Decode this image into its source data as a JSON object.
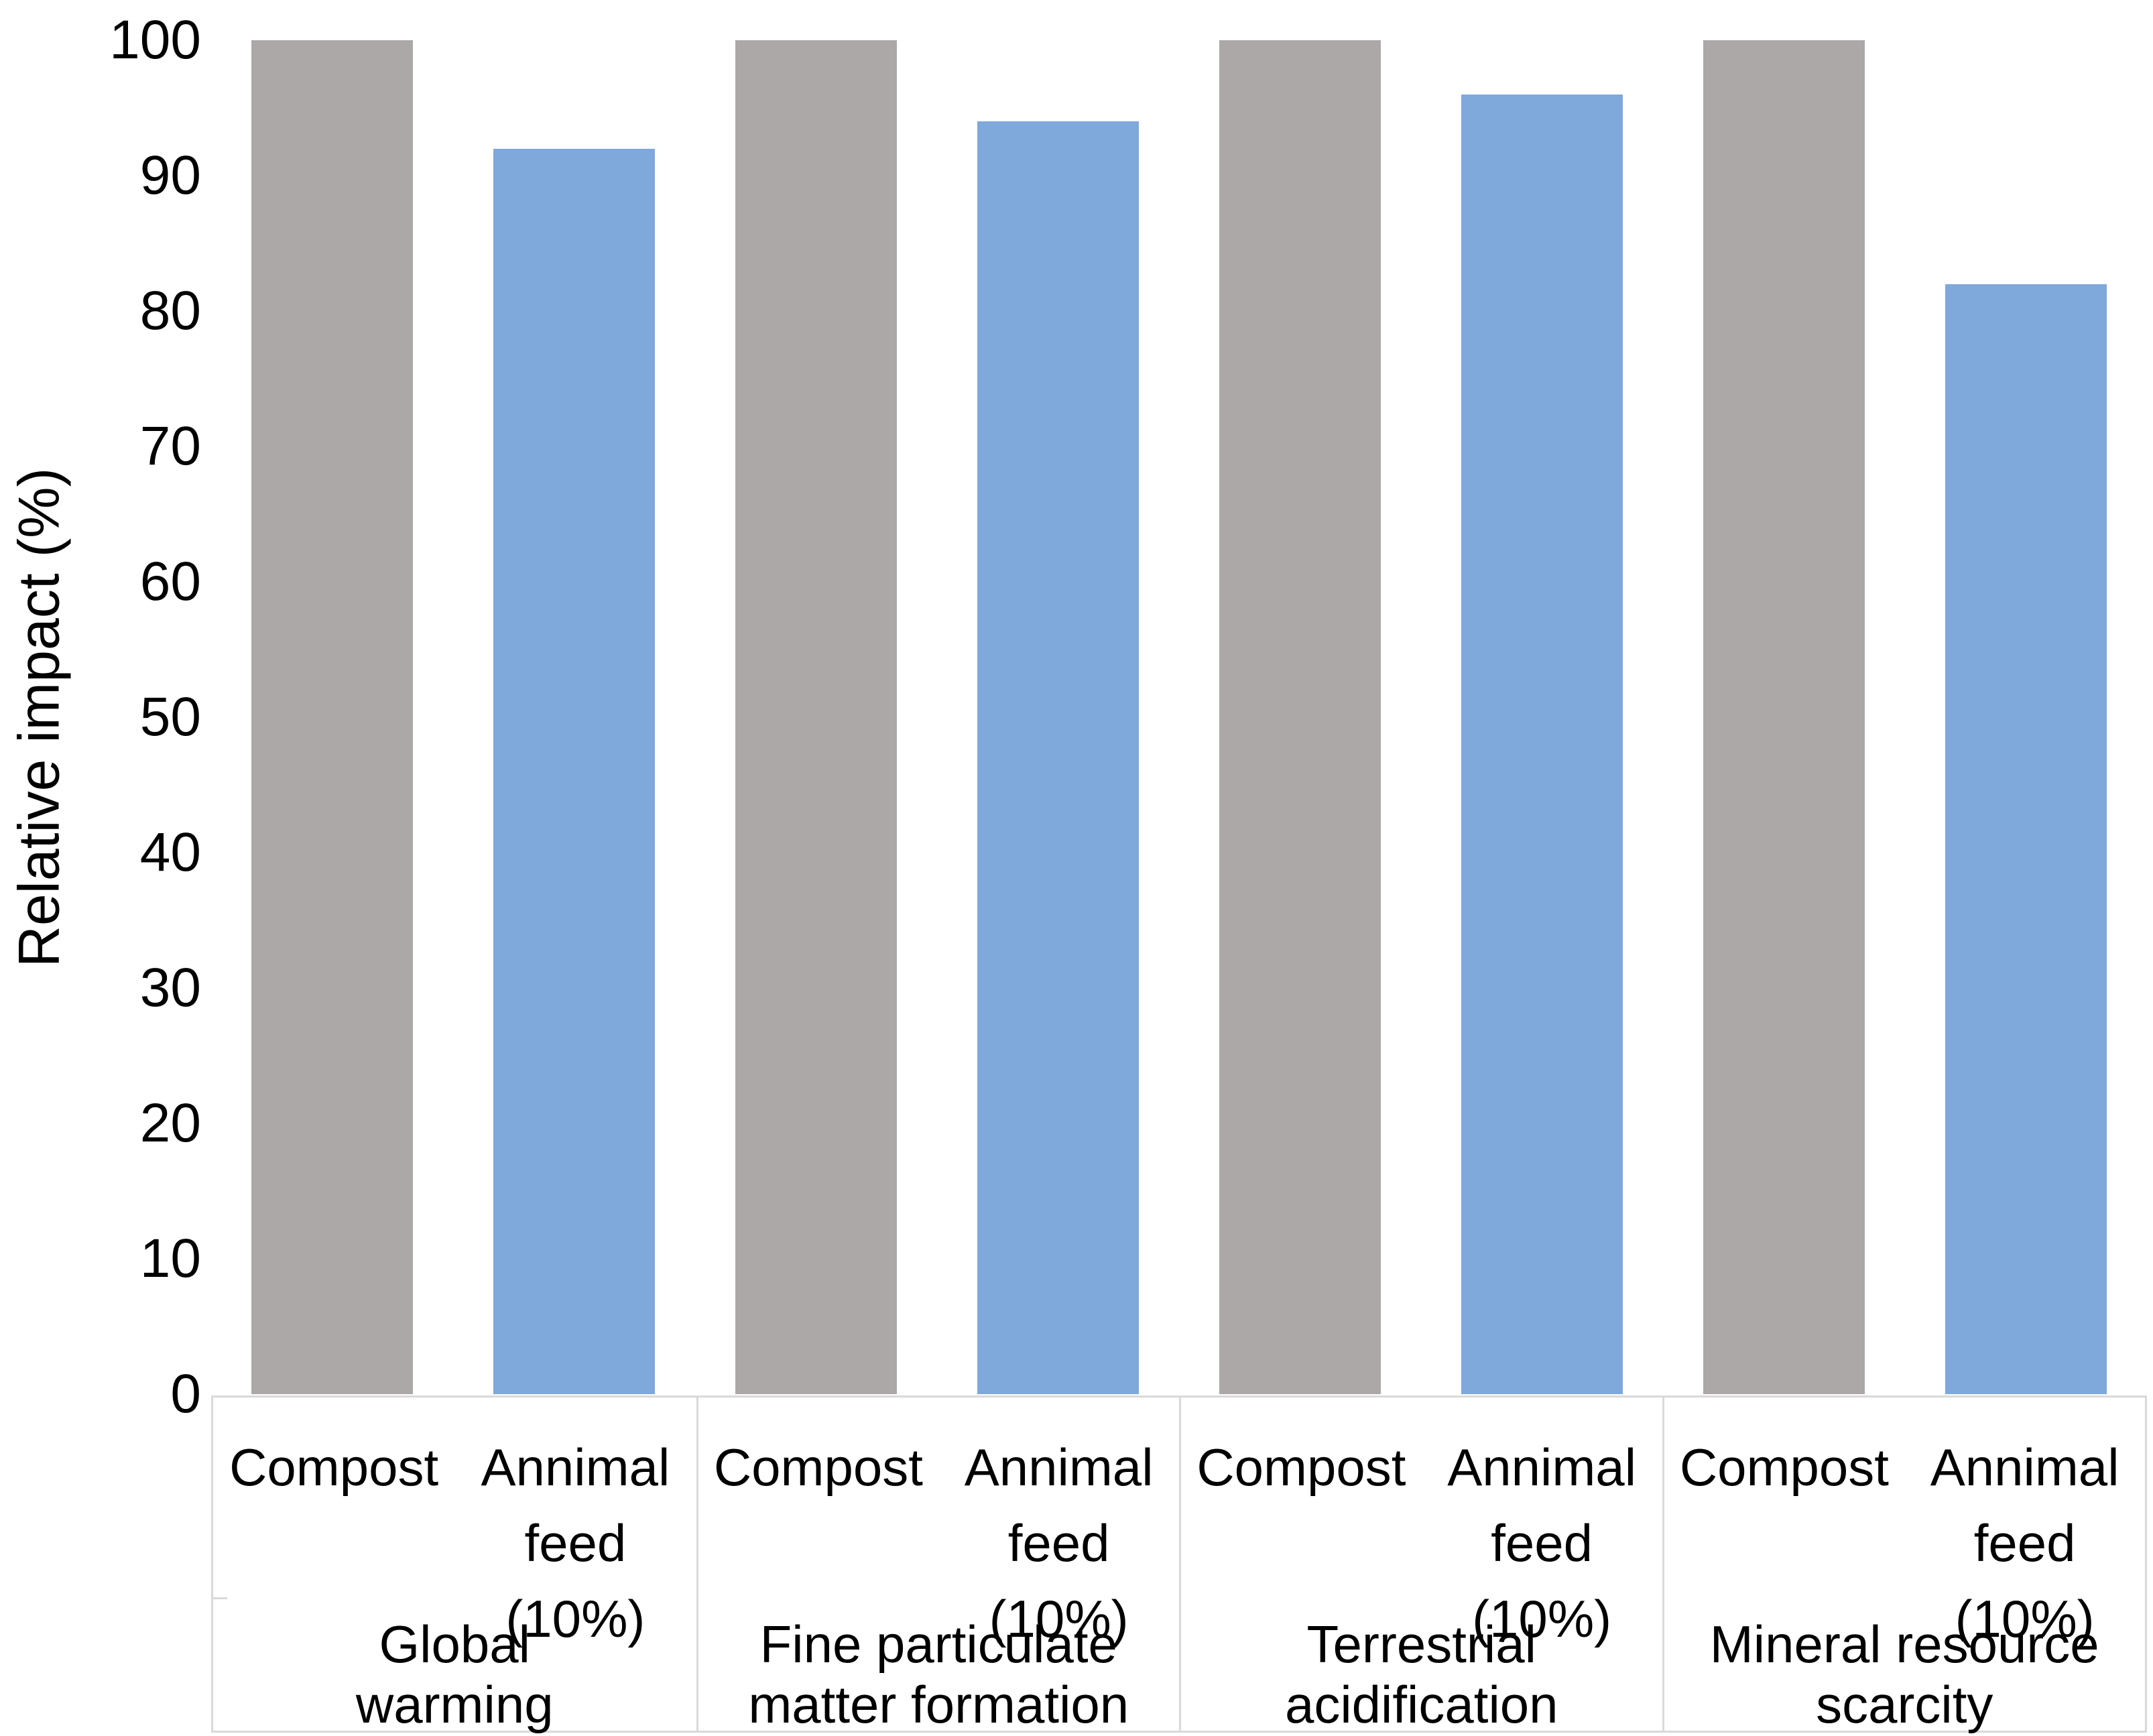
{
  "chart_data": {
    "type": "bar",
    "title": "",
    "xlabel": "",
    "ylabel": "Relative impact (%)",
    "ylim": [
      0,
      100
    ],
    "ytick_step": 10,
    "yticks": [
      100,
      90,
      80,
      70,
      60,
      50,
      40,
      30,
      20,
      10,
      0
    ],
    "grid": false,
    "legend_position": "none",
    "categories": [
      "Global warming",
      "Fine particulate matter formation",
      "Terrestrial acidification",
      "Mineral resource scarcity"
    ],
    "series": [
      {
        "name": "Compost",
        "color": "#ACA8A7",
        "values": [
          100,
          100,
          100,
          100
        ]
      },
      {
        "name": "Annimal feed (10%)",
        "color": "#7FA8DB",
        "values": [
          92,
          94,
          96,
          82
        ]
      }
    ],
    "axis_line_color": "#D9D9D9",
    "text_color": "#000000"
  },
  "labels": {
    "bar_label_lines": {
      "compost": [
        "Compost",
        ""
      ],
      "animal_feed": [
        "Annimal",
        "feed (10%)"
      ]
    },
    "category_label_lines": [
      [
        "Global",
        "warming"
      ],
      [
        "Fine particulate",
        "matter formation"
      ],
      [
        "Terrestrial",
        "acidification"
      ],
      [
        "Mineral resource",
        "scarcity"
      ]
    ]
  }
}
